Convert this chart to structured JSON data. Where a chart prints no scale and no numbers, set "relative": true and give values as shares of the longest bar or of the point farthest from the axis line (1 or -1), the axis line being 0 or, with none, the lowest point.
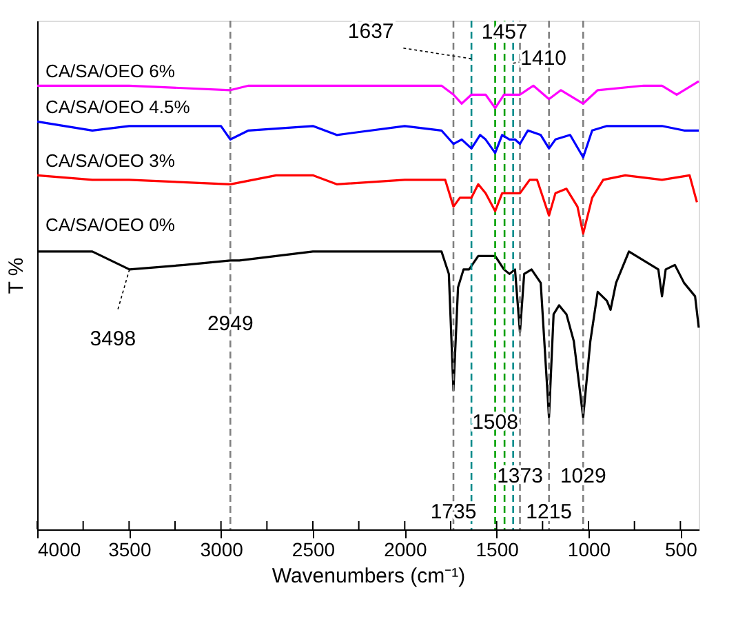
{
  "chart_data": {
    "type": "line",
    "relative": true,
    "xlabel": "Wavenumbers (cm⁻¹)",
    "ylabel": "T %",
    "xlim": [
      4000,
      400
    ],
    "xticks": [
      4000,
      {
        "value": 3750,
        "label": null
      },
      3500,
      {
        "value": 3250,
        "label": null
      },
      3000,
      {
        "value": 2750,
        "label": null
      },
      2500,
      {
        "value": 2250,
        "label": null
      },
      2000,
      {
        "value": 1750,
        "label": null
      },
      1500,
      {
        "value": 1250,
        "label": null
      },
      1000,
      {
        "value": 750,
        "label": null
      },
      500
    ],
    "grid": false,
    "tick_labels": "x",
    "line_style": "solid",
    "marker": "none",
    "series": [
      {
        "name": "CA/SA/OEO 0%",
        "color": "#000000",
        "x": [
          4000,
          3700,
          3498,
          3200,
          2949,
          2900,
          2500,
          2000,
          1800,
          1760,
          1735,
          1710,
          1680,
          1650,
          1600,
          1508,
          1460,
          1430,
          1400,
          1373,
          1350,
          1310,
          1260,
          1215,
          1190,
          1160,
          1120,
          1080,
          1029,
          990,
          950,
          900,
          880,
          850,
          780,
          700,
          620,
          600,
          580,
          530,
          480,
          420,
          400
        ],
        "values": [
          0.62,
          0.62,
          0.58,
          0.59,
          0.6,
          0.6,
          0.62,
          0.62,
          0.62,
          0.57,
          0.31,
          0.54,
          0.58,
          0.58,
          0.61,
          0.61,
          0.58,
          0.57,
          0.58,
          0.44,
          0.57,
          0.58,
          0.55,
          0.25,
          0.48,
          0.5,
          0.48,
          0.42,
          0.25,
          0.42,
          0.53,
          0.51,
          0.49,
          0.55,
          0.62,
          0.6,
          0.58,
          0.52,
          0.58,
          0.59,
          0.55,
          0.52,
          0.45
        ]
      },
      {
        "name": "CA/SA/OEO 3%",
        "color": "#ff0000",
        "x": [
          4000,
          3700,
          3500,
          2949,
          2700,
          2500,
          2370,
          2000,
          1780,
          1735,
          1700,
          1637,
          1600,
          1560,
          1508,
          1470,
          1410,
          1373,
          1320,
          1280,
          1215,
          1180,
          1120,
          1060,
          1029,
          980,
          920,
          800,
          600,
          450,
          410
        ],
        "values": [
          0.79,
          0.78,
          0.78,
          0.77,
          0.79,
          0.79,
          0.77,
          0.78,
          0.78,
          0.72,
          0.74,
          0.74,
          0.77,
          0.75,
          0.71,
          0.75,
          0.75,
          0.75,
          0.78,
          0.78,
          0.7,
          0.75,
          0.76,
          0.72,
          0.66,
          0.74,
          0.78,
          0.79,
          0.78,
          0.79,
          0.73
        ]
      },
      {
        "name": "CA/SA/OEO 4.5%",
        "color": "#0000ff",
        "x": [
          4000,
          3700,
          3500,
          3000,
          2949,
          2850,
          2500,
          2370,
          2000,
          1800,
          1735,
          1690,
          1637,
          1590,
          1560,
          1508,
          1470,
          1430,
          1400,
          1373,
          1330,
          1260,
          1215,
          1180,
          1100,
          1029,
          980,
          900,
          600,
          480,
          400
        ],
        "values": [
          0.91,
          0.89,
          0.9,
          0.9,
          0.87,
          0.89,
          0.9,
          0.88,
          0.9,
          0.89,
          0.86,
          0.87,
          0.85,
          0.88,
          0.87,
          0.84,
          0.88,
          0.87,
          0.87,
          0.86,
          0.89,
          0.88,
          0.85,
          0.87,
          0.88,
          0.83,
          0.89,
          0.9,
          0.9,
          0.89,
          0.89
        ]
      },
      {
        "name": "CA/SA/OEO 6%",
        "color": "#ff00ff",
        "x": [
          4000,
          3700,
          3500,
          2949,
          2850,
          2370,
          2000,
          1800,
          1735,
          1690,
          1637,
          1560,
          1508,
          1460,
          1410,
          1373,
          1300,
          1215,
          1150,
          1029,
          950,
          700,
          600,
          520,
          400
        ],
        "values": [
          0.99,
          0.99,
          0.99,
          0.98,
          0.99,
          0.99,
          0.99,
          0.99,
          0.97,
          0.95,
          0.97,
          0.97,
          0.94,
          0.97,
          0.97,
          0.97,
          0.99,
          0.96,
          0.98,
          0.95,
          0.98,
          0.99,
          0.99,
          0.97,
          1.0
        ]
      }
    ],
    "ref_lines": [
      {
        "axis": "x",
        "value": 2949,
        "color": "#808080",
        "line_style": "dashed"
      },
      {
        "axis": "x",
        "value": 1735,
        "color": "#808080",
        "line_style": "dashed"
      },
      {
        "axis": "x",
        "value": 1637,
        "color": "#008b8b",
        "line_style": "dashed"
      },
      {
        "axis": "x",
        "value": 1508,
        "color": "#00a000",
        "line_style": "dashed"
      },
      {
        "axis": "x",
        "value": 1457,
        "color": "#00a000",
        "line_style": "dashed"
      },
      {
        "axis": "x",
        "value": 1410,
        "color": "#008b8b",
        "line_style": "dashed"
      },
      {
        "axis": "x",
        "value": 1373,
        "color": "#808080",
        "line_style": "dashed"
      },
      {
        "axis": "x",
        "value": 1215,
        "color": "#808080",
        "line_style": "dashed"
      },
      {
        "axis": "x",
        "value": 1029,
        "color": "#808080",
        "line_style": "dashed"
      }
    ],
    "annotations": [
      {
        "text": "3498",
        "x": 3498,
        "y": 0.58
      },
      {
        "text": "2949",
        "x": 2949,
        "y": 0.46
      },
      {
        "text": "1735",
        "x": 1735,
        "y": 0.04
      },
      {
        "text": "1508",
        "x": 1508,
        "y": 0.24
      },
      {
        "text": "1373",
        "x": 1373,
        "y": 0.12
      },
      {
        "text": "1215",
        "x": 1215,
        "y": 0.04
      },
      {
        "text": "1029",
        "x": 1029,
        "y": 0.12
      },
      {
        "text": "1637",
        "x": 1637,
        "y": 1.05
      },
      {
        "text": "1457",
        "x": 1457,
        "y": 1.11
      },
      {
        "text": "1410",
        "x": 1410,
        "y": 1.04
      }
    ]
  }
}
